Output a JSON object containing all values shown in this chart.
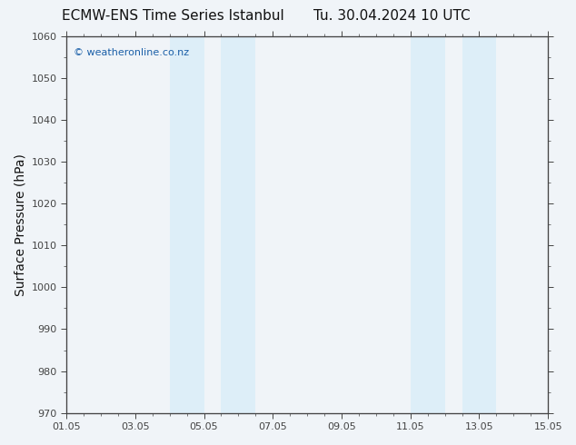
{
  "title_left": "ECMW-ENS Time Series Istanbul",
  "title_right": "Tu. 30.04.2024 10 UTC",
  "ylabel": "Surface Pressure (hPa)",
  "ylim": [
    970,
    1060
  ],
  "yticks": [
    970,
    980,
    990,
    1000,
    1010,
    1020,
    1030,
    1040,
    1050,
    1060
  ],
  "xlabel_ticks": [
    "01.05",
    "03.05",
    "05.05",
    "07.05",
    "09.05",
    "11.05",
    "13.05",
    "15.05"
  ],
  "x_tick_positions": [
    0,
    2,
    4,
    6,
    8,
    10,
    12,
    14
  ],
  "xlim": [
    0,
    14
  ],
  "shade_bands": [
    {
      "x_start": 3.0,
      "x_end": 4.0
    },
    {
      "x_start": 4.5,
      "x_end": 5.5
    },
    {
      "x_start": 10.0,
      "x_end": 11.0
    },
    {
      "x_start": 11.5,
      "x_end": 12.5
    }
  ],
  "shade_color": "#ddeef8",
  "background_color": "#f0f4f8",
  "plot_bg_color": "#f0f4f8",
  "spine_color": "#444444",
  "tick_color": "#444444",
  "watermark_text": "© weatheronline.co.nz",
  "watermark_color": "#1a5fa8",
  "title_color": "#111111",
  "title_fontsize": 11,
  "ylabel_fontsize": 10,
  "tick_fontsize": 8,
  "watermark_fontsize": 8
}
